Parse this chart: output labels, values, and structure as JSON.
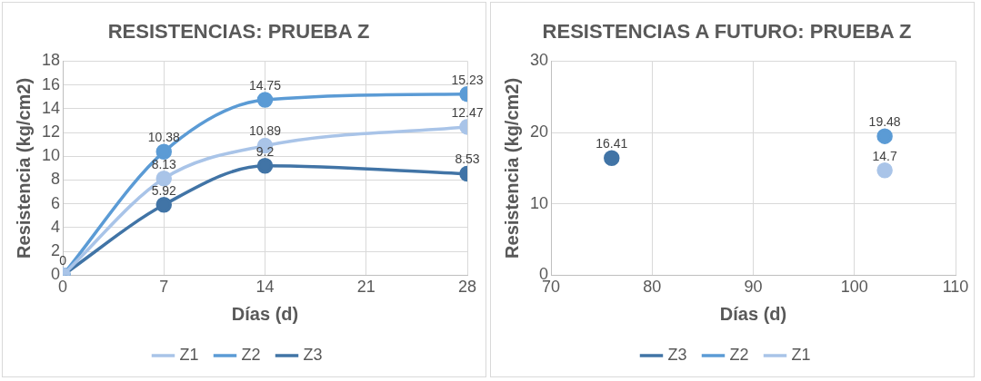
{
  "chart_data": [
    {
      "type": "line",
      "title": "RESISTENCIAS: PRUEBA Z",
      "xlabel": "Días (d)",
      "ylabel": "Resistencia (kg/cm2)",
      "x": [
        0,
        7,
        14,
        28
      ],
      "xlim": [
        0,
        28
      ],
      "xticks": [
        0,
        7,
        14,
        21,
        28
      ],
      "ylim": [
        0,
        18
      ],
      "yticks": [
        0,
        2,
        4,
        6,
        8,
        10,
        12,
        14,
        16,
        18
      ],
      "grid": true,
      "legend": "bottom",
      "marker": "circle",
      "data_labels": true,
      "series": [
        {
          "name": "Z1",
          "color": "#a9c4e8",
          "values": [
            0,
            8.13,
            10.89,
            12.47
          ],
          "value_labels": [
            "0",
            "8.13",
            "10.89",
            "12.47"
          ]
        },
        {
          "name": "Z2",
          "color": "#5b9bd5",
          "values": [
            0,
            10.38,
            14.75,
            15.23
          ],
          "value_labels": [
            null,
            "10.38",
            "14.75",
            "15.23"
          ]
        },
        {
          "name": "Z3",
          "color": "#4174a6",
          "values": [
            0,
            5.92,
            9.2,
            8.53
          ],
          "value_labels": [
            null,
            "5.92",
            "9.2",
            "8.53"
          ]
        }
      ]
    },
    {
      "type": "scatter",
      "title": "RESISTENCIAS A FUTURO: PRUEBA Z",
      "xlabel": "Días (d)",
      "ylabel": "Resistencia (kg/cm2)",
      "xlim": [
        70,
        110
      ],
      "xticks": [
        70,
        80,
        90,
        100,
        110
      ],
      "ylim": [
        0,
        30
      ],
      "yticks": [
        0,
        10,
        20,
        30
      ],
      "grid": true,
      "legend": "bottom",
      "marker": "circle",
      "data_labels": true,
      "x": [
        76,
        103
      ],
      "series": [
        {
          "name": "Z3",
          "color": "#4174a6",
          "values": [
            16.41,
            null
          ]
        },
        {
          "name": "Z2",
          "color": "#5b9bd5",
          "values": [
            null,
            19.48
          ]
        },
        {
          "name": "Z1",
          "color": "#a9c4e8",
          "values": [
            null,
            14.7
          ]
        }
      ]
    }
  ]
}
